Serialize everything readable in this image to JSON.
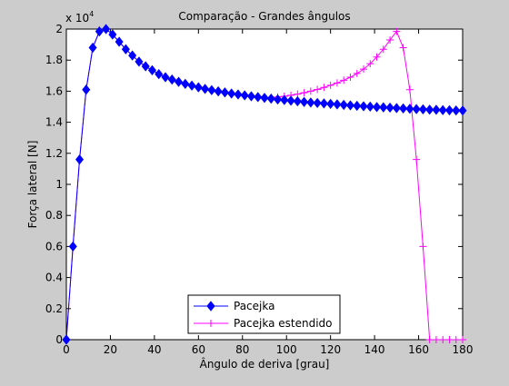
{
  "chart_data": {
    "type": "line",
    "title": "Comparação - Grandes ângulos",
    "xlabel": "Ângulo de deriva [grau]",
    "ylabel": "Força lateral [N]",
    "y_multiplier_label": "x 10",
    "y_multiplier_exponent": "4",
    "xlim": [
      0,
      180
    ],
    "ylim": [
      0,
      2
    ],
    "xticks": [
      "0",
      "20",
      "40",
      "60",
      "80",
      "100",
      "120",
      "140",
      "160",
      "180"
    ],
    "yticks": [
      "0",
      "0.2",
      "0.4",
      "0.6",
      "0.8",
      "1",
      "1.2",
      "1.4",
      "1.6",
      "1.8",
      "2"
    ],
    "grid": false,
    "legend_position": "bottom-center",
    "series": [
      {
        "name": "Pacejka",
        "color": "#0000ff",
        "marker": "diamond",
        "x": [
          0,
          3,
          6,
          9,
          12,
          15,
          18,
          21,
          24,
          27,
          30,
          33,
          36,
          39,
          42,
          45,
          48,
          51,
          54,
          57,
          60,
          63,
          66,
          69,
          72,
          75,
          78,
          81,
          84,
          87,
          90,
          93,
          96,
          99,
          102,
          105,
          108,
          111,
          114,
          117,
          120,
          123,
          126,
          129,
          132,
          135,
          138,
          141,
          144,
          147,
          150,
          153,
          156,
          159,
          162,
          165,
          168,
          171,
          174,
          177,
          180
        ],
        "y": [
          0,
          0.6,
          1.16,
          1.61,
          1.88,
          1.985,
          2.0,
          1.965,
          1.918,
          1.87,
          1.83,
          1.79,
          1.76,
          1.735,
          1.71,
          1.69,
          1.675,
          1.66,
          1.647,
          1.636,
          1.625,
          1.615,
          1.607,
          1.599,
          1.592,
          1.585,
          1.579,
          1.573,
          1.567,
          1.562,
          1.557,
          1.552,
          1.547,
          1.543,
          1.539,
          1.535,
          1.531,
          1.527,
          1.524,
          1.521,
          1.518,
          1.515,
          1.512,
          1.509,
          1.506,
          1.503,
          1.501,
          1.498,
          1.496,
          1.494,
          1.491,
          1.489,
          1.487,
          1.485,
          1.483,
          1.481,
          1.48,
          1.478,
          1.477,
          1.476,
          1.475
        ]
      },
      {
        "name": "Pacejka estendido",
        "color": "#ff00ff",
        "marker": "plus",
        "x": [
          0,
          3,
          6,
          9,
          12,
          15,
          18,
          21,
          24,
          27,
          30,
          33,
          36,
          39,
          42,
          45,
          48,
          51,
          54,
          57,
          60,
          63,
          66,
          69,
          72,
          75,
          78,
          81,
          84,
          87,
          90,
          93,
          96,
          99,
          102,
          105,
          108,
          111,
          114,
          117,
          120,
          123,
          126,
          129,
          132,
          135,
          138,
          141,
          144,
          147,
          150,
          153,
          156,
          159,
          162,
          165,
          168,
          171,
          174,
          177,
          180
        ],
        "y": [
          0,
          0.6,
          1.16,
          1.61,
          1.88,
          1.985,
          2.0,
          1.965,
          1.918,
          1.87,
          1.83,
          1.79,
          1.76,
          1.735,
          1.71,
          1.69,
          1.675,
          1.66,
          1.647,
          1.636,
          1.625,
          1.615,
          1.607,
          1.599,
          1.592,
          1.585,
          1.579,
          1.573,
          1.567,
          1.562,
          1.557,
          1.557,
          1.562,
          1.567,
          1.574,
          1.581,
          1.59,
          1.6,
          1.611,
          1.624,
          1.638,
          1.653,
          1.67,
          1.69,
          1.714,
          1.742,
          1.777,
          1.82,
          1.87,
          1.93,
          1.985,
          1.88,
          1.61,
          1.16,
          0.6,
          0.0,
          0.0,
          0.0,
          0.0,
          0.0,
          0.0
        ]
      }
    ]
  }
}
